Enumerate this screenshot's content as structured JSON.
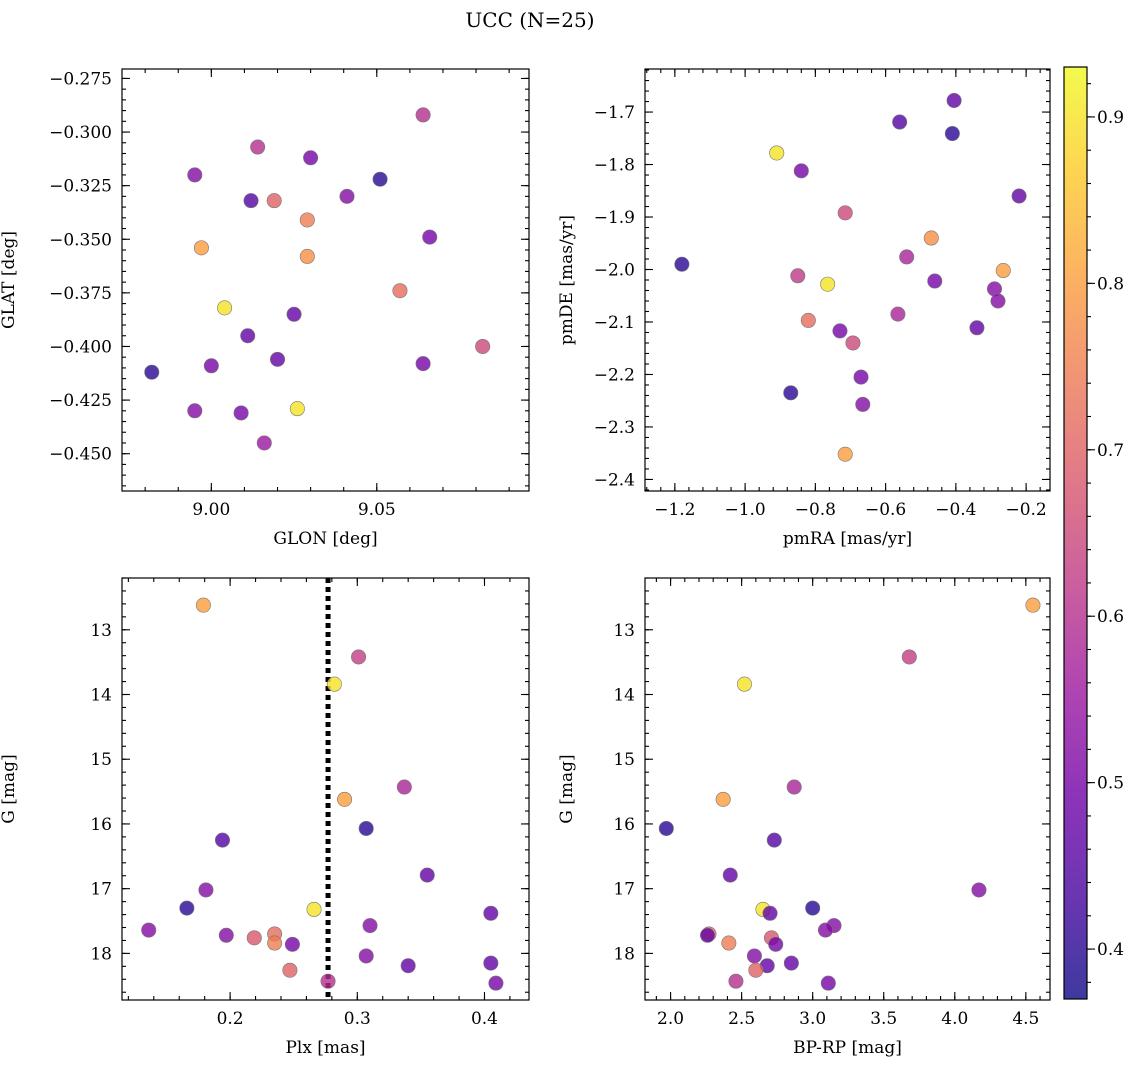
{
  "suptitle": "UCC (N=25)",
  "colorbar": {
    "range": [
      0.37,
      0.93
    ],
    "ticks": [
      0.4,
      0.5,
      0.6,
      0.7,
      0.8,
      0.9
    ],
    "tick_labels": [
      "0.4",
      "0.5",
      "0.6",
      "0.7",
      "0.8",
      "0.9"
    ],
    "colormap": "plasma",
    "stops": [
      "#0d0887",
      "#46039f",
      "#7201a8",
      "#9c179e",
      "#bd3786",
      "#d8576b",
      "#ed7953",
      "#fb9f3a",
      "#fdca26",
      "#f0f921"
    ]
  },
  "marker_alpha": 0.8,
  "chart_data": [
    {
      "type": "scatter",
      "xlabel": "GLON [deg]",
      "ylabel": "GLAT [deg]",
      "xlim": [
        8.973,
        9.096
      ],
      "ylim": [
        -0.4674,
        -0.2706
      ],
      "y_inverted": false,
      "xticks": [
        9.0,
        9.05
      ],
      "xtick_labels": [
        "9.00",
        "9.05"
      ],
      "yticks": [
        -0.275,
        -0.3,
        -0.325,
        -0.35,
        -0.375,
        -0.4,
        -0.425,
        -0.45
      ],
      "ytick_labels": [
        "−0.275",
        "−0.300",
        "−0.325",
        "−0.350",
        "−0.375",
        "−0.400",
        "−0.425",
        "−0.450"
      ],
      "points": [
        {
          "x": 8.982,
          "y": -0.412,
          "c": 0.4
        },
        {
          "x": 8.995,
          "y": -0.43,
          "c": 0.52
        },
        {
          "x": 8.995,
          "y": -0.32,
          "c": 0.52
        },
        {
          "x": 8.997,
          "y": -0.354,
          "c": 0.8
        },
        {
          "x": 9.0,
          "y": -0.409,
          "c": 0.5
        },
        {
          "x": 9.004,
          "y": -0.382,
          "c": 0.9
        },
        {
          "x": 9.009,
          "y": -0.431,
          "c": 0.5
        },
        {
          "x": 9.011,
          "y": -0.395,
          "c": 0.47
        },
        {
          "x": 9.012,
          "y": -0.332,
          "c": 0.45
        },
        {
          "x": 9.014,
          "y": -0.307,
          "c": 0.6
        },
        {
          "x": 9.016,
          "y": -0.445,
          "c": 0.55
        },
        {
          "x": 9.019,
          "y": -0.332,
          "c": 0.7
        },
        {
          "x": 9.02,
          "y": -0.406,
          "c": 0.47
        },
        {
          "x": 9.025,
          "y": -0.385,
          "c": 0.47
        },
        {
          "x": 9.026,
          "y": -0.429,
          "c": 0.9
        },
        {
          "x": 9.029,
          "y": -0.341,
          "c": 0.75
        },
        {
          "x": 9.029,
          "y": -0.358,
          "c": 0.78
        },
        {
          "x": 9.03,
          "y": -0.312,
          "c": 0.5
        },
        {
          "x": 9.041,
          "y": -0.33,
          "c": 0.52
        },
        {
          "x": 9.051,
          "y": -0.322,
          "c": 0.4
        },
        {
          "x": 9.057,
          "y": -0.374,
          "c": 0.72
        },
        {
          "x": 9.064,
          "y": -0.292,
          "c": 0.6
        },
        {
          "x": 9.064,
          "y": -0.408,
          "c": 0.5
        },
        {
          "x": 9.066,
          "y": -0.349,
          "c": 0.5
        },
        {
          "x": 9.082,
          "y": -0.4,
          "c": 0.65
        }
      ]
    },
    {
      "type": "scatter",
      "xlabel": "pmRA [mas/yr]",
      "ylabel": "pmDE [mas/yr]",
      "xlim": [
        -1.285,
        -0.132
      ],
      "ylim": [
        -2.422,
        -1.618
      ],
      "y_inverted": false,
      "xticks": [
        -1.2,
        -1.0,
        -0.8,
        -0.6,
        -0.4,
        -0.2
      ],
      "xtick_labels": [
        "−1.2",
        "−1.0",
        "−0.8",
        "−0.6",
        "−0.4",
        "−0.2"
      ],
      "yticks": [
        -1.7,
        -1.8,
        -1.9,
        -2.0,
        -2.1,
        -2.2,
        -2.3,
        -2.4
      ],
      "ytick_labels": [
        "−1.7",
        "−1.8",
        "−1.9",
        "−2.0",
        "−2.1",
        "−2.2",
        "−2.3",
        "−2.4"
      ],
      "points": [
        {
          "x": -1.18,
          "y": -1.99,
          "c": 0.4
        },
        {
          "x": -0.91,
          "y": -1.778,
          "c": 0.9
        },
        {
          "x": -0.87,
          "y": -2.235,
          "c": 0.4
        },
        {
          "x": -0.85,
          "y": -2.012,
          "c": 0.62
        },
        {
          "x": -0.84,
          "y": -1.812,
          "c": 0.5
        },
        {
          "x": -0.82,
          "y": -2.097,
          "c": 0.72
        },
        {
          "x": -0.765,
          "y": -2.028,
          "c": 0.9
        },
        {
          "x": -0.73,
          "y": -2.117,
          "c": 0.5
        },
        {
          "x": -0.715,
          "y": -2.352,
          "c": 0.8
        },
        {
          "x": -0.715,
          "y": -1.892,
          "c": 0.65
        },
        {
          "x": -0.693,
          "y": -2.14,
          "c": 0.65
        },
        {
          "x": -0.67,
          "y": -2.205,
          "c": 0.5
        },
        {
          "x": -0.665,
          "y": -2.257,
          "c": 0.52
        },
        {
          "x": -0.565,
          "y": -2.085,
          "c": 0.58
        },
        {
          "x": -0.56,
          "y": -1.719,
          "c": 0.45
        },
        {
          "x": -0.54,
          "y": -1.976,
          "c": 0.58
        },
        {
          "x": -0.47,
          "y": -1.94,
          "c": 0.78
        },
        {
          "x": -0.46,
          "y": -2.022,
          "c": 0.5
        },
        {
          "x": -0.41,
          "y": -1.741,
          "c": 0.4
        },
        {
          "x": -0.405,
          "y": -1.678,
          "c": 0.47
        },
        {
          "x": -0.34,
          "y": -2.111,
          "c": 0.47
        },
        {
          "x": -0.29,
          "y": -2.037,
          "c": 0.52
        },
        {
          "x": -0.28,
          "y": -2.06,
          "c": 0.52
        },
        {
          "x": -0.265,
          "y": -2.002,
          "c": 0.8
        },
        {
          "x": -0.22,
          "y": -1.86,
          "c": 0.47
        }
      ]
    },
    {
      "type": "scatter",
      "xlabel": "Plx [mas]",
      "ylabel": "G [mag]",
      "xlim": [
        0.115,
        0.435
      ],
      "ylim": [
        18.72,
        12.2
      ],
      "y_inverted": true,
      "xticks": [
        0.2,
        0.3,
        0.4
      ],
      "xtick_labels": [
        "0.2",
        "0.3",
        "0.4"
      ],
      "yticks": [
        13,
        14,
        15,
        16,
        17,
        18
      ],
      "ytick_labels": [
        "13",
        "14",
        "15",
        "16",
        "17",
        "18"
      ],
      "vline": 0.277,
      "points": [
        {
          "x": 0.179,
          "y": 12.62,
          "c": 0.8
        },
        {
          "x": 0.301,
          "y": 13.42,
          "c": 0.63
        },
        {
          "x": 0.282,
          "y": 13.84,
          "c": 0.9
        },
        {
          "x": 0.337,
          "y": 15.43,
          "c": 0.58
        },
        {
          "x": 0.29,
          "y": 15.62,
          "c": 0.8
        },
        {
          "x": 0.307,
          "y": 16.07,
          "c": 0.4
        },
        {
          "x": 0.194,
          "y": 16.25,
          "c": 0.45
        },
        {
          "x": 0.355,
          "y": 16.79,
          "c": 0.47
        },
        {
          "x": 0.181,
          "y": 17.02,
          "c": 0.52
        },
        {
          "x": 0.166,
          "y": 17.3,
          "c": 0.4
        },
        {
          "x": 0.266,
          "y": 17.32,
          "c": 0.9
        },
        {
          "x": 0.405,
          "y": 17.38,
          "c": 0.47
        },
        {
          "x": 0.31,
          "y": 17.57,
          "c": 0.52
        },
        {
          "x": 0.136,
          "y": 17.64,
          "c": 0.52
        },
        {
          "x": 0.235,
          "y": 17.7,
          "c": 0.72
        },
        {
          "x": 0.197,
          "y": 17.72,
          "c": 0.52
        },
        {
          "x": 0.219,
          "y": 17.76,
          "c": 0.68
        },
        {
          "x": 0.235,
          "y": 17.84,
          "c": 0.75
        },
        {
          "x": 0.249,
          "y": 17.86,
          "c": 0.5
        },
        {
          "x": 0.307,
          "y": 18.04,
          "c": 0.52
        },
        {
          "x": 0.405,
          "y": 18.15,
          "c": 0.47
        },
        {
          "x": 0.34,
          "y": 18.19,
          "c": 0.47
        },
        {
          "x": 0.247,
          "y": 18.26,
          "c": 0.7
        },
        {
          "x": 0.277,
          "y": 18.43,
          "c": 0.6
        },
        {
          "x": 0.409,
          "y": 18.46,
          "c": 0.5
        }
      ]
    },
    {
      "type": "scatter",
      "xlabel": "BP-RP [mag]",
      "ylabel": "G [mag]",
      "xlim": [
        1.82,
        4.67
      ],
      "ylim": [
        18.72,
        12.2
      ],
      "y_inverted": true,
      "xticks": [
        2.0,
        2.5,
        3.0,
        3.5,
        4.0,
        4.5
      ],
      "xtick_labels": [
        "2.0",
        "2.5",
        "3.0",
        "3.5",
        "4.0",
        "4.5"
      ],
      "yticks": [
        13,
        14,
        15,
        16,
        17,
        18
      ],
      "ytick_labels": [
        "13",
        "14",
        "15",
        "16",
        "17",
        "18"
      ],
      "points": [
        {
          "x": 4.55,
          "y": 12.62,
          "c": 0.8
        },
        {
          "x": 3.68,
          "y": 13.42,
          "c": 0.63
        },
        {
          "x": 2.52,
          "y": 13.84,
          "c": 0.9
        },
        {
          "x": 2.87,
          "y": 15.43,
          "c": 0.58
        },
        {
          "x": 2.37,
          "y": 15.62,
          "c": 0.8
        },
        {
          "x": 1.97,
          "y": 16.07,
          "c": 0.4
        },
        {
          "x": 2.73,
          "y": 16.25,
          "c": 0.45
        },
        {
          "x": 2.42,
          "y": 16.79,
          "c": 0.47
        },
        {
          "x": 4.17,
          "y": 17.02,
          "c": 0.52
        },
        {
          "x": 3.0,
          "y": 17.3,
          "c": 0.4
        },
        {
          "x": 2.65,
          "y": 17.32,
          "c": 0.9
        },
        {
          "x": 2.7,
          "y": 17.38,
          "c": 0.47
        },
        {
          "x": 3.15,
          "y": 17.57,
          "c": 0.52
        },
        {
          "x": 3.09,
          "y": 17.64,
          "c": 0.52
        },
        {
          "x": 2.27,
          "y": 17.7,
          "c": 0.72
        },
        {
          "x": 2.26,
          "y": 17.72,
          "c": 0.47
        },
        {
          "x": 2.71,
          "y": 17.76,
          "c": 0.68
        },
        {
          "x": 2.41,
          "y": 17.84,
          "c": 0.75
        },
        {
          "x": 2.74,
          "y": 17.86,
          "c": 0.5
        },
        {
          "x": 2.59,
          "y": 18.04,
          "c": 0.52
        },
        {
          "x": 2.85,
          "y": 18.15,
          "c": 0.47
        },
        {
          "x": 2.68,
          "y": 18.19,
          "c": 0.47
        },
        {
          "x": 2.6,
          "y": 18.26,
          "c": 0.7
        },
        {
          "x": 2.46,
          "y": 18.43,
          "c": 0.6
        },
        {
          "x": 3.11,
          "y": 18.46,
          "c": 0.5
        }
      ]
    }
  ]
}
